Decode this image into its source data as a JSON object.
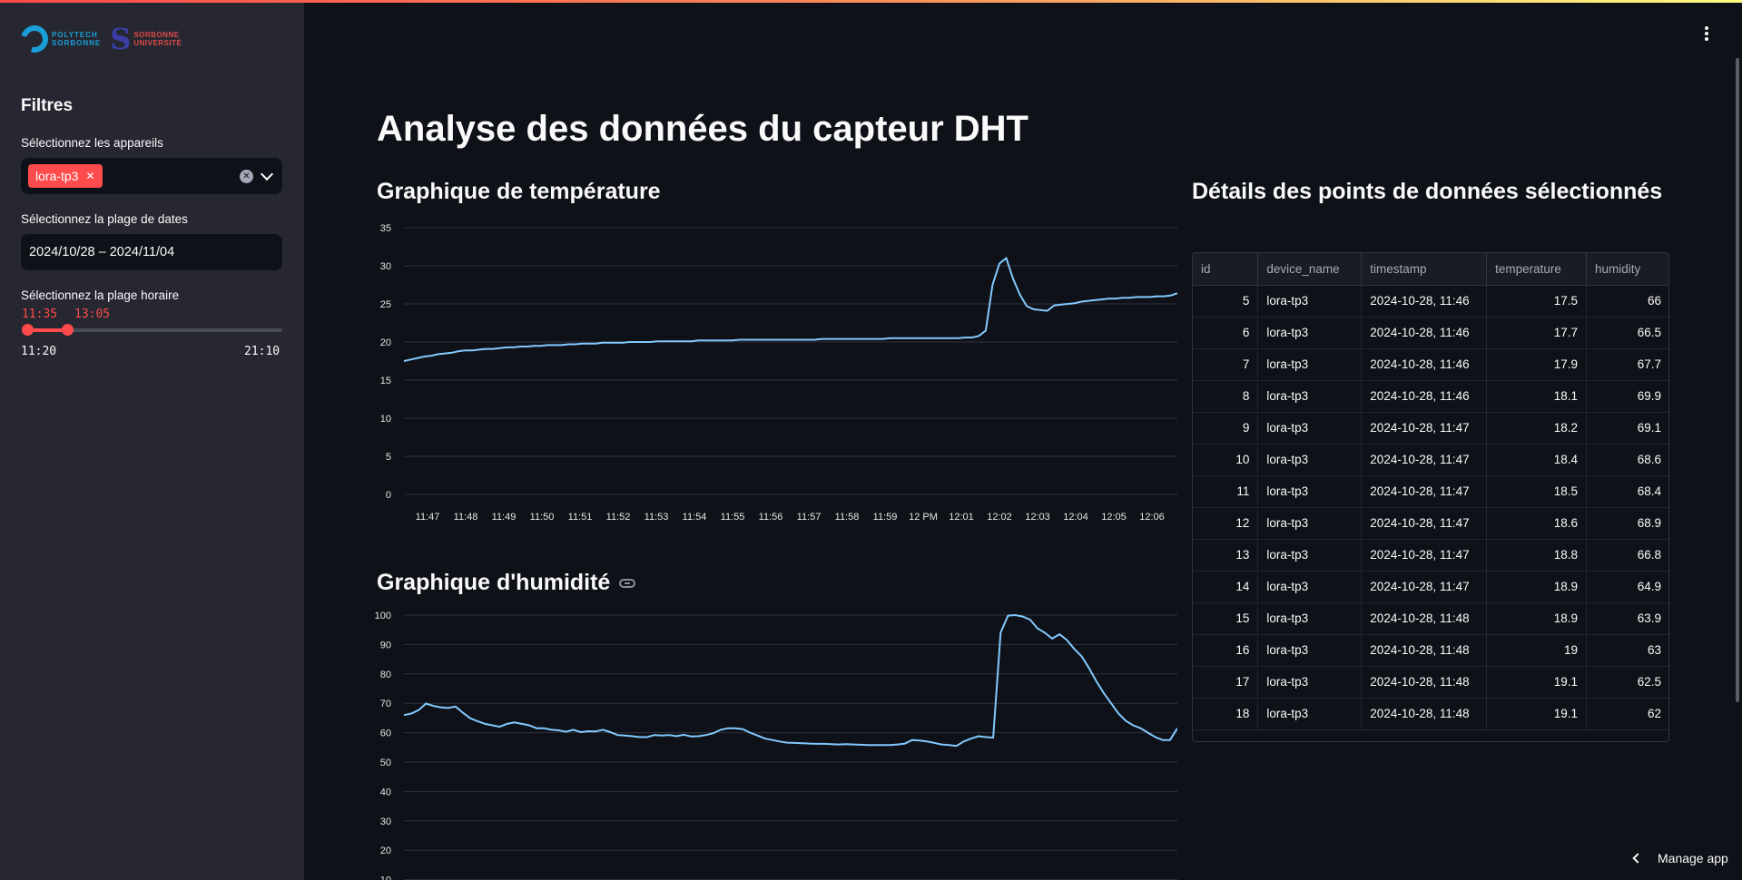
{
  "sidebar": {
    "logos": {
      "polytech_line1": "POLYTECH",
      "polytech_line2": "SORBONNE",
      "sorbonne_line1": "SORBONNE",
      "sorbonne_line2": "UNIVERSITÉ"
    },
    "heading": "Filtres",
    "devices_label": "Sélectionnez les appareils",
    "selected_device": "lora-tp3",
    "date_label": "Sélectionnez la plage de dates",
    "date_value": "2024/10/28 – 2024/11/04",
    "time_label": "Sélectionnez la plage horaire",
    "time_min_selected": "11:35",
    "time_max_selected": "13:05",
    "time_range_min": "11:20",
    "time_range_max": "21:10"
  },
  "main": {
    "title": "Analyse des données du capteur DHT",
    "temp_chart_title": "Graphique de température",
    "humidity_chart_title": "Graphique d'humidité",
    "table_title": "Détails des points de données sélectionnés"
  },
  "chart_data": [
    {
      "type": "line",
      "x_ticks": [
        "11:47",
        "11:48",
        "11:49",
        "11:50",
        "11:51",
        "11:52",
        "11:53",
        "11:54",
        "11:55",
        "11:56",
        "11:57",
        "11:58",
        "11:59",
        "12 PM",
        "12:01",
        "12:02",
        "12:03",
        "12:04",
        "12:05",
        "12:06"
      ],
      "ylim": [
        0,
        35
      ],
      "y_ticks": [
        0,
        5,
        10,
        15,
        20,
        25,
        30,
        35
      ],
      "color": "#83c9ff",
      "series": [
        {
          "values": [
            17.5,
            17.7,
            17.9,
            18.1,
            18.2,
            18.4,
            18.5,
            18.6,
            18.8,
            18.9,
            18.9,
            19,
            19.1,
            19.1,
            19.2,
            19.3,
            19.3,
            19.4,
            19.4,
            19.5,
            19.5,
            19.6,
            19.6,
            19.6,
            19.7,
            19.7,
            19.8,
            19.8,
            19.8,
            19.9,
            19.9,
            19.9,
            19.9,
            20,
            20,
            20,
            20,
            20.1,
            20.1,
            20.1,
            20.1,
            20.1,
            20.1,
            20.2,
            20.2,
            20.2,
            20.2,
            20.2,
            20.2,
            20.3,
            20.3,
            20.3,
            20.3,
            20.3,
            20.3,
            20.3,
            20.3,
            20.3,
            20.3,
            20.3,
            20.3,
            20.4,
            20.4,
            20.4,
            20.4,
            20.4,
            20.4,
            20.4,
            20.4,
            20.4,
            20.4,
            20.5,
            20.5,
            20.5,
            20.5,
            20.5,
            20.5,
            20.5,
            20.5,
            20.5,
            20.5,
            20.5,
            20.6,
            20.6,
            20.8,
            21.5,
            27.5,
            30.3,
            31,
            28.3,
            26.2,
            24.7,
            24.3,
            24.2,
            24.1,
            24.8,
            24.9,
            25,
            25.1,
            25.3,
            25.4,
            25.5,
            25.6,
            25.7,
            25.7,
            25.8,
            25.8,
            25.9,
            25.9,
            25.9,
            26,
            26,
            26.1,
            26.4
          ]
        }
      ]
    },
    {
      "type": "line",
      "ylim": [
        0,
        100
      ],
      "y_ticks": [
        10,
        20,
        30,
        40,
        50,
        60,
        70,
        80,
        90,
        100
      ],
      "color": "#83c9ff",
      "series": [
        {
          "values": [
            66,
            66.5,
            67.7,
            69.9,
            69.1,
            68.6,
            68.4,
            68.9,
            66.8,
            64.9,
            63.9,
            63,
            62.5,
            62,
            63,
            63.5,
            63,
            62.5,
            61.5,
            61.5,
            61,
            60.8,
            60.3,
            61,
            60.2,
            60.5,
            60.4,
            61,
            60.2,
            59.2,
            59,
            58.8,
            58.5,
            58.5,
            59.2,
            59,
            59.2,
            58.8,
            59.3,
            58.7,
            58.8,
            59.2,
            59.8,
            61,
            61.5,
            61.5,
            61.2,
            60,
            59,
            58,
            57.5,
            57,
            56.6,
            56.5,
            56.4,
            56.3,
            56.2,
            56.2,
            56.1,
            56,
            56.1,
            56,
            55.9,
            55.8,
            55.8,
            55.8,
            55.8,
            56,
            56.3,
            57.5,
            57.3,
            57,
            56.5,
            56,
            55.8,
            55.5,
            57,
            58,
            58.8,
            58.5,
            58.3,
            94,
            99.8,
            100,
            99.5,
            98.5,
            95.5,
            94,
            92,
            93.5,
            91.5,
            88.5,
            86,
            82,
            77.5,
            73.5,
            70,
            66.5,
            64,
            62.5,
            61.5,
            60,
            58.5,
            57.5,
            57.5,
            61.5
          ]
        }
      ]
    }
  ],
  "table": {
    "columns": [
      "id",
      "device_name",
      "timestamp",
      "temperature",
      "humidity"
    ],
    "rows": [
      [
        "5",
        "lora-tp3",
        "2024-10-28, 11:46",
        "17.5",
        "66"
      ],
      [
        "6",
        "lora-tp3",
        "2024-10-28, 11:46",
        "17.7",
        "66.5"
      ],
      [
        "7",
        "lora-tp3",
        "2024-10-28, 11:46",
        "17.9",
        "67.7"
      ],
      [
        "8",
        "lora-tp3",
        "2024-10-28, 11:46",
        "18.1",
        "69.9"
      ],
      [
        "9",
        "lora-tp3",
        "2024-10-28, 11:47",
        "18.2",
        "69.1"
      ],
      [
        "10",
        "lora-tp3",
        "2024-10-28, 11:47",
        "18.4",
        "68.6"
      ],
      [
        "11",
        "lora-tp3",
        "2024-10-28, 11:47",
        "18.5",
        "68.4"
      ],
      [
        "12",
        "lora-tp3",
        "2024-10-28, 11:47",
        "18.6",
        "68.9"
      ],
      [
        "13",
        "lora-tp3",
        "2024-10-28, 11:47",
        "18.8",
        "66.8"
      ],
      [
        "14",
        "lora-tp3",
        "2024-10-28, 11:47",
        "18.9",
        "64.9"
      ],
      [
        "15",
        "lora-tp3",
        "2024-10-28, 11:48",
        "18.9",
        "63.9"
      ],
      [
        "16",
        "lora-tp3",
        "2024-10-28, 11:48",
        "19",
        "63"
      ],
      [
        "17",
        "lora-tp3",
        "2024-10-28, 11:48",
        "19.1",
        "62.5"
      ],
      [
        "18",
        "lora-tp3",
        "2024-10-28, 11:48",
        "19.1",
        "62"
      ]
    ]
  },
  "footer": {
    "manage_label": "Manage app"
  }
}
